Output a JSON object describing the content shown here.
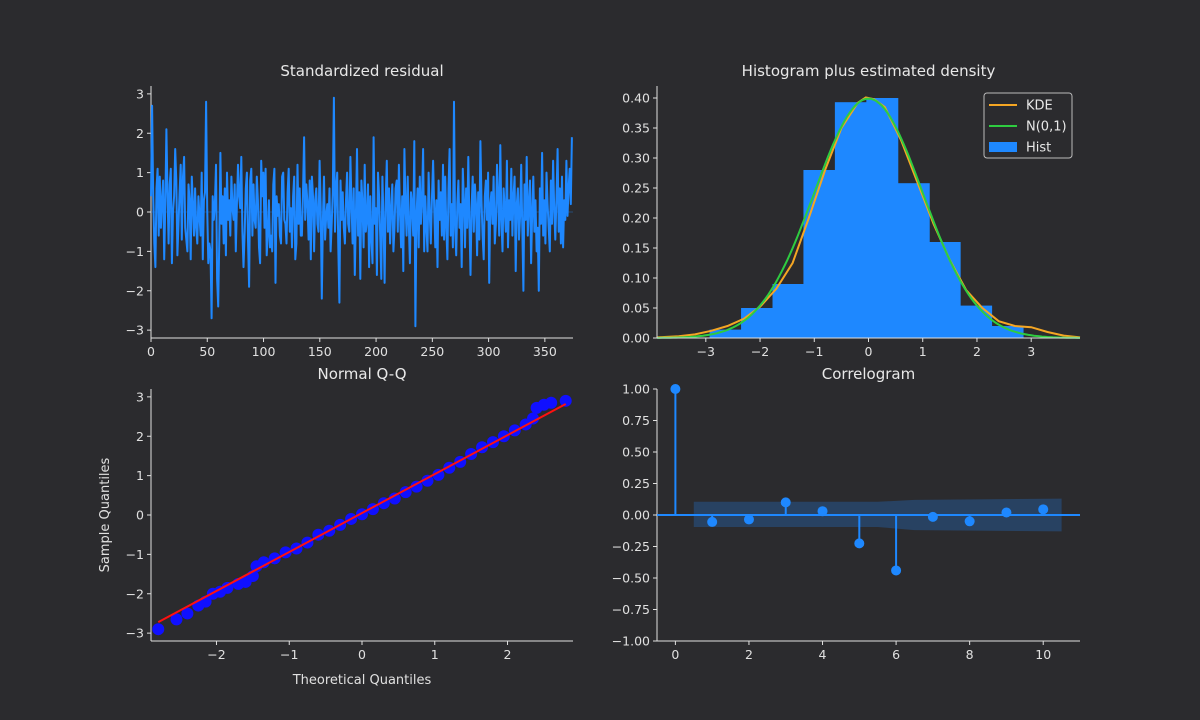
{
  "colors": {
    "background": "#2b2b2e",
    "axes": "#e0e0e0",
    "series": "#1e88ff",
    "kde": "#f5a623",
    "normal": "#2ecc40",
    "qq_points": "#1010ff",
    "qq_line": "#ff1010",
    "conf_band": "#1e88ff"
  },
  "chart_data": [
    {
      "id": "residual",
      "type": "line",
      "title": "Standardized residual",
      "xlabel": "",
      "ylabel": "",
      "xlim": [
        0,
        375
      ],
      "ylim": [
        -3.2,
        3.2
      ],
      "xticks": [
        0,
        50,
        100,
        150,
        200,
        250,
        300,
        350
      ],
      "yticks": [
        -3,
        -2,
        -1,
        0,
        1,
        2,
        3
      ],
      "x_start": 0,
      "x_end": 374,
      "values": [
        0.4,
        2.7,
        0.4,
        -0.8,
        -1.4,
        0.6,
        1.1,
        -0.6,
        0.9,
        -0.4,
        0.3,
        0.8,
        -1.2,
        0.2,
        2.1,
        0.5,
        -0.8,
        0.7,
        1.1,
        -1.3,
        0.0,
        0.4,
        1.6,
        0.8,
        -1.1,
        -0.3,
        0.5,
        1.2,
        -0.7,
        0.9,
        1.4,
        -0.4,
        -0.7,
        -1.0,
        0.7,
        0.3,
        -1.2,
        0.9,
        0.2,
        -0.6,
        0.6,
        -0.4,
        -0.8,
        0.4,
        -0.1,
        -0.6,
        1.0,
        -1.2,
        0.3,
        0.5,
        2.8,
        0.1,
        -1.3,
        -0.8,
        -1.0,
        -2.7,
        0.4,
        -0.2,
        0.2,
        1.2,
        -1.7,
        -2.4,
        -0.7,
        1.5,
        -0.3,
        0.4,
        -0.8,
        0.6,
        -1.1,
        1.0,
        -0.2,
        0.3,
        -0.6,
        0.9,
        0.1,
        -0.2,
        0.7,
        -1.0,
        0.2,
        1.2,
        0.4,
        0.1,
        1.4,
        -0.5,
        -1.4,
        -0.5,
        0.6,
        1.0,
        -0.7,
        -1.9,
        0.8,
        1.1,
        -0.6,
        0.7,
        -0.2,
        -0.4,
        0.9,
        0.3,
        -0.9,
        -1.3,
        1.3,
        0.4,
        1.0,
        -0.4,
        1.1,
        -1.1,
        -0.6,
        0.3,
        -0.9,
        -0.6,
        -1.0,
        0.7,
        1.1,
        -1.8,
        0.4,
        -0.1,
        0.2,
        -0.6,
        -0.8,
        0.9,
        1.0,
        -0.2,
        -0.3,
        -0.8,
        0.5,
        1.1,
        -0.5,
        0.1,
        -0.9,
        0.4,
        0.9,
        -1.2,
        -0.8,
        1.2,
        -0.3,
        0.6,
        -0.6,
        -0.6,
        0.5,
        1.9,
        -0.2,
        0.7,
        0.2,
        -0.7,
        0.8,
        -1.2,
        0.9,
        0.4,
        -1.0,
        0.3,
        0.6,
        -0.3,
        -0.5,
        1.3,
        0.1,
        -2.2,
        -0.2,
        0.9,
        -0.7,
        -0.1,
        0.2,
        -0.4,
        0.6,
        -1.0,
        -0.3,
        0.5,
        2.9,
        -0.5,
        0.6,
        1.0,
        -0.9,
        -2.3,
        0.8,
        -0.2,
        0.5,
        -0.4,
        -0.8,
        0.3,
        1.0,
        -0.3,
        -0.5,
        1.4,
        0.2,
        -0.8,
        0.6,
        -1.6,
        -0.1,
        1.6,
        -0.6,
        0.5,
        -1.7,
        0.8,
        0.2,
        -0.9,
        1.2,
        -0.5,
        -0.2,
        0.7,
        -1.4,
        0.4,
        -0.7,
        -1.3,
        1.9,
        -0.3,
        0.1,
        -1.6,
        1.0,
        0.4,
        -0.6,
        -1.7,
        0.9,
        -0.2,
        -1.8,
        0.3,
        1.3,
        -0.5,
        0.6,
        -0.8,
        0.1,
        0.7,
        -1.0,
        -0.4,
        0.6,
        0.8,
        -0.5,
        1.2,
        0.0,
        -0.9,
        0.4,
        -1.5,
        1.6,
        0.2,
        -0.6,
        0.9,
        -0.3,
        -1.3,
        0.5,
        0.2,
        -0.6,
        1.8,
        -2.9,
        -0.1,
        0.6,
        -0.9,
        0.9,
        -0.3,
        0.3,
        1.6,
        -1.0,
        0.4,
        -0.4,
        -1.0,
        1.0,
        0.0,
        -0.8,
        0.4,
        1.3,
        0.1,
        -0.9,
        0.3,
        -1.4,
        0.8,
        -0.2,
        0.5,
        -0.6,
        1.2,
        -0.7,
        0.9,
        -0.4,
        -1.2,
        0.6,
        1.6,
        -0.6,
        0.2,
        -0.9,
        2.8,
        -0.4,
        -1.1,
        0.2,
        0.8,
        -0.4,
        0.2,
        -1.4,
        1.1,
        0.3,
        -0.9,
        0.6,
        -0.4,
        1.4,
        -0.2,
        -1.6,
        0.1,
        0.9,
        -0.5,
        0.7,
        0.2,
        -1.1,
        0.5,
        -0.7,
        1.8,
        0.3,
        -0.6,
        -1.2,
        0.4,
        0.8,
        -0.2,
        1.0,
        -1.8,
        0.2,
        0.5,
        -0.3,
        0.9,
        -0.8,
        -0.3,
        1.2,
        0.4,
        -0.6,
        1.7,
        -0.2,
        -1.0,
        0.6,
        0.1,
        -0.5,
        1.3,
        -0.9,
        0.3,
        -0.2,
        1.1,
        -0.6,
        0.4,
        0.9,
        -1.5,
        0.2,
        0.6,
        -0.7,
        -0.1,
        1.2,
        -0.4,
        -2.0,
        0.7,
        -0.2,
        1.4,
        -0.6,
        0.2,
        0.8,
        -1.3,
        0.0,
        0.9,
        -0.5,
        0.3,
        -1.0,
        -0.4,
        -2.0,
        0.6,
        -0.3,
        1.5,
        -0.6,
        0.3,
        -0.8,
        1.0,
        0.2,
        -0.4,
        -1.0,
        0.8,
        -0.3,
        1.3,
        0.1,
        -0.7,
        0.3,
        1.6,
        -0.5,
        0.6,
        -0.8,
        0.9,
        -0.9,
        0.3,
        -0.2,
        1.3,
        -0.1,
        0.6,
        1.1,
        0.2,
        1.9
      ]
    },
    {
      "id": "histogram",
      "type": "histogram",
      "title": "Histogram plus estimated density",
      "xlim": [
        -3.9,
        3.9
      ],
      "ylim": [
        0,
        0.42
      ],
      "xticks": [
        -3,
        -2,
        -1,
        0,
        1,
        2,
        3
      ],
      "yticks": [
        0.0,
        0.05,
        0.1,
        0.15,
        0.2,
        0.25,
        0.3,
        0.35,
        0.4
      ],
      "ytick_labels": [
        "0.00",
        "0.05",
        "0.10",
        "0.15",
        "0.20",
        "0.25",
        "0.30",
        "0.35",
        "0.40"
      ],
      "bin_edges": [
        -2.93,
        -2.35,
        -1.77,
        -1.2,
        -0.62,
        -0.04,
        0.54,
        1.12,
        1.69,
        2.27,
        2.85
      ],
      "bin_heights": [
        0.014,
        0.05,
        0.09,
        0.28,
        0.393,
        0.4,
        0.258,
        0.16,
        0.054,
        0.02
      ],
      "legend": [
        "KDE",
        "N(0,1)",
        "Hist"
      ],
      "legend_position": "upper right",
      "kde": {
        "x": [
          -3.9,
          -3.5,
          -3.2,
          -2.9,
          -2.6,
          -2.3,
          -2.0,
          -1.7,
          -1.4,
          -1.1,
          -0.8,
          -0.5,
          -0.2,
          -0.05,
          0.1,
          0.3,
          0.6,
          0.9,
          1.2,
          1.5,
          1.8,
          2.1,
          2.4,
          2.7,
          3.0,
          3.3,
          3.6,
          3.9
        ],
        "y": [
          0.001,
          0.003,
          0.006,
          0.012,
          0.02,
          0.032,
          0.052,
          0.082,
          0.125,
          0.2,
          0.28,
          0.35,
          0.392,
          0.401,
          0.398,
          0.385,
          0.33,
          0.26,
          0.19,
          0.13,
          0.08,
          0.05,
          0.028,
          0.02,
          0.018,
          0.01,
          0.004,
          0.001
        ]
      },
      "normal": {
        "mean": 0,
        "std": 1
      }
    },
    {
      "id": "qq",
      "type": "scatter",
      "title": "Normal Q-Q",
      "xlabel": "Theoretical Quantiles",
      "ylabel": "Sample Quantiles",
      "xlim": [
        -2.9,
        2.9
      ],
      "ylim": [
        -3.2,
        3.2
      ],
      "xticks": [
        -2,
        -1,
        0,
        1,
        2
      ],
      "yticks": [
        -3,
        -2,
        -1,
        0,
        1,
        2,
        3
      ],
      "reference_line": {
        "x": [
          -2.8,
          2.8
        ],
        "y": [
          -2.72,
          2.82
        ]
      },
      "points": [
        [
          -2.8,
          -2.9
        ],
        [
          -2.55,
          -2.65
        ],
        [
          -2.4,
          -2.5
        ],
        [
          -2.25,
          -2.3
        ],
        [
          -2.15,
          -2.2
        ],
        [
          -2.05,
          -2.0
        ],
        [
          -1.95,
          -1.95
        ],
        [
          -1.85,
          -1.85
        ],
        [
          -1.7,
          -1.75
        ],
        [
          -1.6,
          -1.7
        ],
        [
          -1.5,
          -1.55
        ],
        [
          -1.45,
          -1.3
        ],
        [
          -1.35,
          -1.2
        ],
        [
          -1.2,
          -1.1
        ],
        [
          -1.05,
          -0.95
        ],
        [
          -0.9,
          -0.85
        ],
        [
          -0.75,
          -0.7
        ],
        [
          -0.6,
          -0.5
        ],
        [
          -0.45,
          -0.4
        ],
        [
          -0.3,
          -0.25
        ],
        [
          -0.15,
          -0.1
        ],
        [
          0.0,
          0.02
        ],
        [
          0.15,
          0.15
        ],
        [
          0.3,
          0.3
        ],
        [
          0.45,
          0.42
        ],
        [
          0.6,
          0.58
        ],
        [
          0.75,
          0.72
        ],
        [
          0.9,
          0.87
        ],
        [
          1.05,
          1.02
        ],
        [
          1.2,
          1.2
        ],
        [
          1.35,
          1.35
        ],
        [
          1.5,
          1.55
        ],
        [
          1.65,
          1.72
        ],
        [
          1.8,
          1.85
        ],
        [
          1.95,
          2.0
        ],
        [
          2.1,
          2.15
        ],
        [
          2.25,
          2.3
        ],
        [
          2.35,
          2.45
        ],
        [
          2.4,
          2.72
        ],
        [
          2.5,
          2.8
        ],
        [
          2.6,
          2.85
        ],
        [
          2.8,
          2.9
        ]
      ]
    },
    {
      "id": "correlogram",
      "type": "stem",
      "title": "Correlogram",
      "xlim": [
        -0.5,
        11
      ],
      "ylim": [
        -1.0,
        1.0
      ],
      "xticks": [
        0,
        2,
        4,
        6,
        8,
        10
      ],
      "yticks": [
        -1.0,
        -0.75,
        -0.5,
        -0.25,
        0.0,
        0.25,
        0.5,
        0.75,
        1.0
      ],
      "ytick_labels": [
        "−1.00",
        "−0.75",
        "−0.50",
        "−0.25",
        "0.00",
        "0.25",
        "0.50",
        "0.75",
        "1.00"
      ],
      "lags": [
        0,
        1,
        2,
        3,
        4,
        5,
        6,
        7,
        8,
        9,
        10
      ],
      "acf": [
        1.0,
        -0.055,
        -0.035,
        0.1,
        0.03,
        -0.225,
        -0.44,
        -0.015,
        -0.05,
        0.02,
        0.045
      ],
      "confidence_band": {
        "x": [
          0.5,
          5.5,
          6.5,
          10.5
        ],
        "upper": [
          0.105,
          0.105,
          0.12,
          0.13
        ],
        "lower": [
          -0.095,
          -0.095,
          -0.12,
          -0.13
        ]
      }
    }
  ]
}
